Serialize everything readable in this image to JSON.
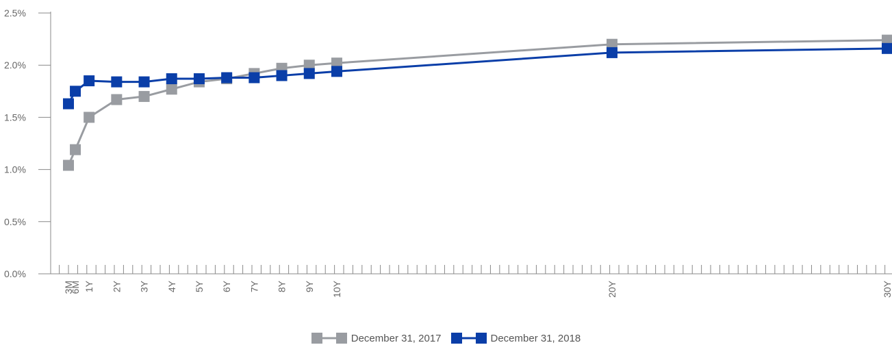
{
  "chart_data": {
    "type": "line",
    "categories": [
      "3M",
      "6M",
      "1Y",
      "2Y",
      "3Y",
      "4Y",
      "5Y",
      "6Y",
      "7Y",
      "8Y",
      "9Y",
      "10Y",
      "20Y",
      "30Y"
    ],
    "maturity_years": [
      0.25,
      0.5,
      1,
      2,
      3,
      4,
      5,
      6,
      7,
      8,
      9,
      10,
      20,
      30
    ],
    "series": [
      {
        "name": "December 31, 2017",
        "color": "#999ca1",
        "values": [
          1.04,
          1.19,
          1.5,
          1.67,
          1.7,
          1.77,
          1.84,
          1.87,
          1.92,
          1.97,
          2.0,
          2.02,
          2.2,
          2.24
        ]
      },
      {
        "name": "December 31, 2018",
        "color": "#0a3ea8",
        "values": [
          1.63,
          1.75,
          1.85,
          1.84,
          1.84,
          1.87,
          1.87,
          1.88,
          1.88,
          1.9,
          1.92,
          1.94,
          2.12,
          2.16
        ]
      }
    ],
    "yticks": [
      "0.0%",
      "0.5%",
      "1.0%",
      "1.5%",
      "2.0%",
      "2.5%"
    ],
    "ylim": [
      0,
      2.5
    ],
    "x_minor_ticks_per_year": 3,
    "title": "",
    "xlabel": "",
    "ylabel": "",
    "legend_position": "bottom-center",
    "grid": false
  }
}
